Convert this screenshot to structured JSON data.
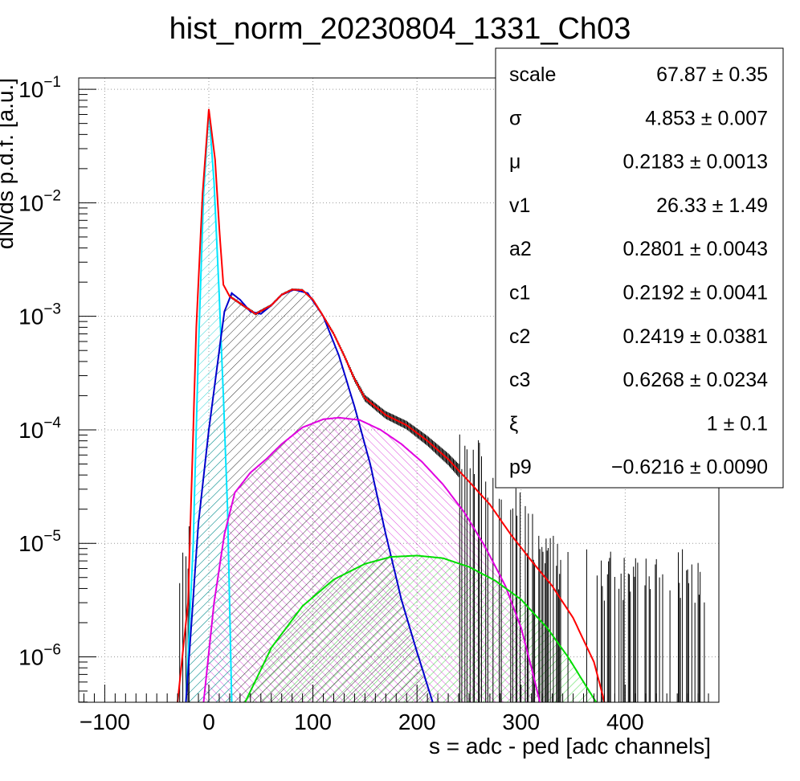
{
  "chart_data": {
    "type": "line",
    "title": "hist_norm_20230804_1331_Ch03",
    "xlabel": "s = adc - ped [adc channels]",
    "ylabel": "dN/ds p.d.f. [a.u.]",
    "xlim": [
      -125,
      490
    ],
    "ylim_log10": [
      -6.4,
      -0.9
    ],
    "log_y": true,
    "grid": true,
    "x_ticks": [
      -100,
      0,
      100,
      200,
      300,
      400
    ],
    "x_tick_labels": [
      "−100",
      "0",
      "100",
      "200",
      "300",
      "400"
    ],
    "y_ticks_exp": [
      -1,
      -2,
      -3,
      -4,
      -5,
      -6
    ],
    "y_tick_base": "10",
    "y_tick_exps": [
      "−1",
      "−2",
      "−3",
      "−4",
      "−5",
      "−6"
    ],
    "series": [
      {
        "color": "#ff0000",
        "kind": "total-fit",
        "points": [
          [
            -30,
            4e-07
          ],
          [
            -20,
            3e-06
          ],
          [
            -12,
            0.0008
          ],
          [
            -6,
            0.012
          ],
          [
            0,
            0.067
          ],
          [
            6,
            0.024
          ],
          [
            10,
            0.006
          ],
          [
            14,
            0.0019
          ],
          [
            20,
            0.0015
          ],
          [
            30,
            0.0013
          ],
          [
            45,
            0.00105
          ],
          [
            60,
            0.00125
          ],
          [
            70,
            0.00155
          ],
          [
            80,
            0.00172
          ],
          [
            90,
            0.0017
          ],
          [
            100,
            0.0014
          ],
          [
            110,
            0.001
          ],
          [
            120,
            0.0007
          ],
          [
            130,
            0.00045
          ],
          [
            140,
            0.00028
          ],
          [
            150,
            0.00019
          ],
          [
            170,
            0.000135
          ],
          [
            190,
            0.00011
          ],
          [
            210,
            8e-05
          ],
          [
            230,
            5.5e-05
          ],
          [
            250,
            3.5e-05
          ],
          [
            270,
            2.2e-05
          ],
          [
            290,
            1.2e-05
          ],
          [
            310,
            7e-06
          ],
          [
            330,
            4.2e-06
          ],
          [
            350,
            2.2e-06
          ],
          [
            370,
            9e-07
          ],
          [
            380,
            4e-07
          ]
        ]
      },
      {
        "color": "#00e5ff",
        "kind": "pedestal",
        "points": [
          [
            -22,
            4e-07
          ],
          [
            -15,
            1e-05
          ],
          [
            -10,
            0.0005
          ],
          [
            -5,
            0.012
          ],
          [
            0,
            0.065
          ],
          [
            5,
            0.015
          ],
          [
            10,
            0.0015
          ],
          [
            14,
            0.0002
          ],
          [
            18,
            2e-05
          ],
          [
            22,
            4e-07
          ]
        ]
      },
      {
        "color": "#0000cc",
        "kind": "1-pe",
        "points": [
          [
            -22,
            4e-07
          ],
          [
            -10,
            1.5e-05
          ],
          [
            0,
            0.0001
          ],
          [
            10,
            0.0005
          ],
          [
            15,
            0.0011
          ],
          [
            22,
            0.0016
          ],
          [
            30,
            0.0014
          ],
          [
            40,
            0.0011
          ],
          [
            50,
            0.00105
          ],
          [
            60,
            0.00125
          ],
          [
            70,
            0.00155
          ],
          [
            82,
            0.00172
          ],
          [
            95,
            0.0016
          ],
          [
            110,
            0.001
          ],
          [
            125,
            0.00045
          ],
          [
            140,
            0.00016
          ],
          [
            155,
            5e-05
          ],
          [
            170,
            1.2e-05
          ],
          [
            185,
            3.2e-06
          ],
          [
            200,
            1.1e-06
          ],
          [
            215,
            4e-07
          ]
        ]
      },
      {
        "color": "#e000e0",
        "kind": "2-pe",
        "points": [
          [
            -5,
            4e-07
          ],
          [
            5,
            3e-06
          ],
          [
            15,
            1.2e-05
          ],
          [
            25,
            2.8e-05
          ],
          [
            40,
            4.2e-05
          ],
          [
            55,
            5.5e-05
          ],
          [
            70,
            7.5e-05
          ],
          [
            90,
            0.000105
          ],
          [
            110,
            0.000124
          ],
          [
            125,
            0.000128
          ],
          [
            145,
            0.000122
          ],
          [
            165,
            0.0001
          ],
          [
            185,
            7.5e-05
          ],
          [
            205,
            5.2e-05
          ],
          [
            225,
            3.3e-05
          ],
          [
            245,
            1.9e-05
          ],
          [
            265,
            9.5e-06
          ],
          [
            285,
            4.2e-06
          ],
          [
            300,
            1.8e-06
          ],
          [
            310,
            8e-07
          ],
          [
            318,
            4e-07
          ]
        ]
      },
      {
        "color": "#00dd00",
        "kind": "3-pe",
        "points": [
          [
            35,
            4e-07
          ],
          [
            60,
            1.2e-06
          ],
          [
            90,
            2.8e-06
          ],
          [
            120,
            4.8e-06
          ],
          [
            150,
            6.6e-06
          ],
          [
            175,
            7.6e-06
          ],
          [
            200,
            7.8e-06
          ],
          [
            225,
            7.4e-06
          ],
          [
            250,
            6.2e-06
          ],
          [
            275,
            4.7e-06
          ],
          [
            300,
            3.2e-06
          ],
          [
            325,
            1.8e-06
          ],
          [
            345,
            1e-06
          ],
          [
            360,
            6e-07
          ],
          [
            372,
            4e-07
          ]
        ]
      }
    ]
  },
  "stats_box": {
    "rows": [
      {
        "name": "scale",
        "value": "67.87 ± 0.35"
      },
      {
        "name": "σ",
        "value": "4.853 ± 0.007"
      },
      {
        "name": "μ",
        "value": "0.2183 ± 0.0013"
      },
      {
        "name": "v1",
        "value": "26.33 ± 1.49"
      },
      {
        "name": "a2",
        "value": "0.2801 ± 0.0043"
      },
      {
        "name": "c1",
        "value": "0.2192 ± 0.0041"
      },
      {
        "name": "c2",
        "value": "0.2419 ± 0.0381"
      },
      {
        "name": "c3",
        "value": "0.6268 ± 0.0234"
      },
      {
        "name": "ξ",
        "value": "1 ± 0.1"
      },
      {
        "name": "p9",
        "value": "−0.6216 ± 0.0090"
      }
    ]
  }
}
